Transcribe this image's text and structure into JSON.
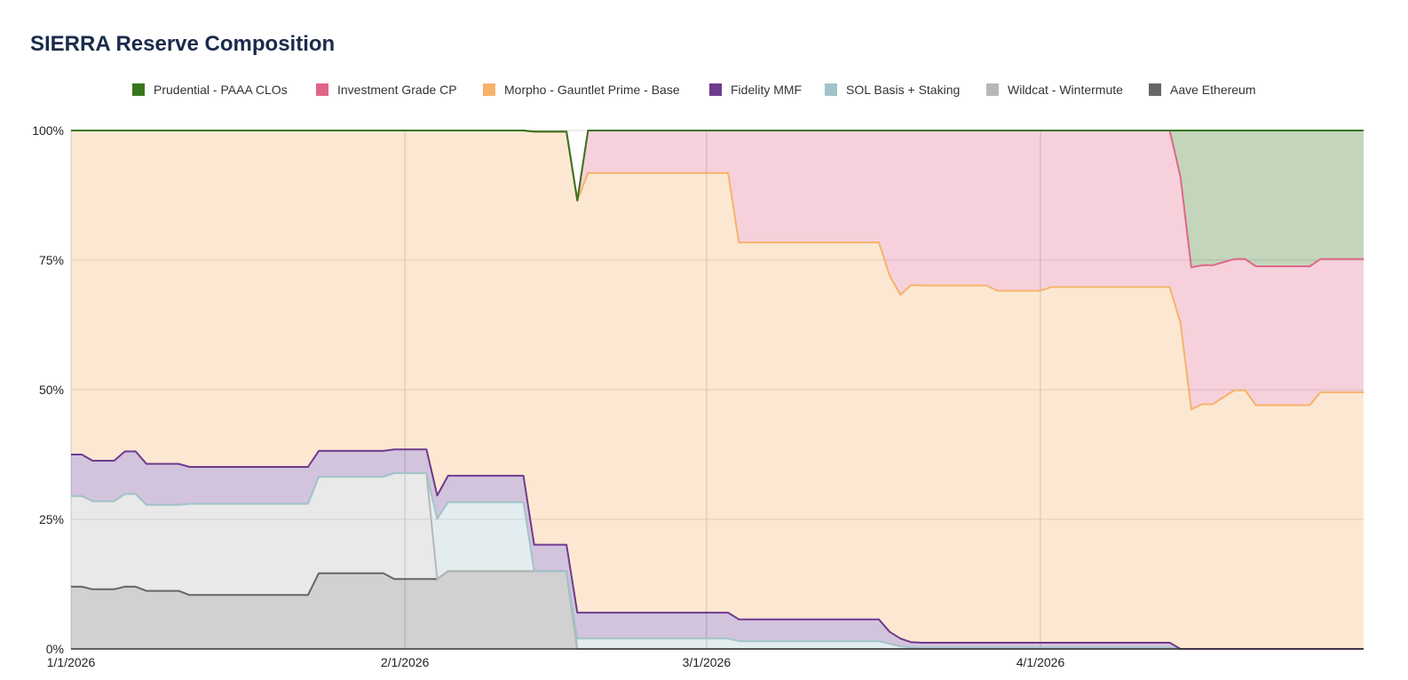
{
  "chart_data": {
    "type": "area",
    "stacked": "percent",
    "title": "SIERRA Reserve Composition",
    "xlabel": "",
    "ylabel": "",
    "ylim": [
      0,
      100
    ],
    "y_ticks": [
      "0%",
      "25%",
      "50%",
      "75%",
      "100%"
    ],
    "x_ticks": [
      "1/1/2026",
      "2/1/2026",
      "3/1/2026",
      "4/1/2026"
    ],
    "legend_position": "top",
    "grid": true,
    "x_start": "2026-01-01",
    "x_end": "2026-05-01",
    "x": [
      "2026-01-01",
      "2026-01-02",
      "2026-01-03",
      "2026-01-05",
      "2026-01-06",
      "2026-01-07",
      "2026-01-08",
      "2026-01-11",
      "2026-01-12",
      "2026-01-13",
      "2026-01-14",
      "2026-01-23",
      "2026-01-24",
      "2026-01-25",
      "2026-01-30",
      "2026-01-31",
      "2026-02-03",
      "2026-02-04",
      "2026-02-05",
      "2026-02-06",
      "2026-02-12",
      "2026-02-13",
      "2026-02-14",
      "2026-02-15",
      "2026-02-16",
      "2026-02-17",
      "2026-02-18",
      "2026-02-19",
      "2026-03-03",
      "2026-03-04",
      "2026-03-05",
      "2026-03-17",
      "2026-03-18",
      "2026-03-19",
      "2026-03-20",
      "2026-03-21",
      "2026-03-27",
      "2026-03-28",
      "2026-04-01",
      "2026-04-02",
      "2026-04-13",
      "2026-04-14",
      "2026-04-15",
      "2026-04-16",
      "2026-04-17",
      "2026-04-19",
      "2026-04-20",
      "2026-04-21",
      "2026-04-22",
      "2026-04-23",
      "2026-04-26",
      "2026-04-27",
      "2026-04-28",
      "2026-05-01"
    ],
    "series": [
      {
        "name": "Aave Ethereum",
        "color": "#666666",
        "values": [
          12,
          12,
          11.5,
          11.5,
          12,
          12,
          11.2,
          11.2,
          10.4,
          10.4,
          10.4,
          10.4,
          14.6,
          14.6,
          14.6,
          13.5,
          13.5,
          13.5,
          15,
          15,
          15,
          15,
          15,
          15,
          15,
          0,
          0,
          0,
          0,
          0,
          0,
          0,
          0,
          0,
          0,
          0,
          0,
          0,
          0,
          0,
          0,
          0,
          0,
          0,
          0,
          0,
          0,
          0,
          0,
          0,
          0,
          0,
          0,
          0
        ]
      },
      {
        "name": "Wildcat - Wintermute",
        "color": "#b7b7b7",
        "values": [
          17.5,
          17.5,
          17,
          17,
          17.9,
          17.9,
          16.6,
          16.6,
          17.6,
          17.6,
          17.6,
          17.6,
          18.6,
          18.6,
          18.6,
          20.4,
          20.4,
          0,
          0,
          0,
          0,
          0,
          0,
          0,
          0,
          0,
          0,
          0,
          0,
          0,
          0,
          0,
          0,
          0,
          0,
          0,
          0,
          0,
          0,
          0,
          0,
          0,
          0,
          0,
          0,
          0,
          0,
          0,
          0,
          0,
          0,
          0,
          0,
          0
        ]
      },
      {
        "name": "SOL Basis + Staking",
        "color": "#a2c4c9",
        "values": [
          0,
          0,
          0,
          0,
          0,
          0,
          0,
          0,
          0,
          0,
          0,
          0,
          0,
          0,
          0,
          0,
          0,
          11.6,
          13.3,
          13.3,
          13.3,
          0,
          0,
          0,
          0,
          2,
          2,
          2,
          2,
          1.5,
          1.5,
          1.5,
          1,
          0.5,
          0.3,
          0.2,
          0.2,
          0.2,
          0.2,
          0.2,
          0.2,
          0,
          0,
          0,
          0,
          0,
          0,
          0,
          0,
          0,
          0,
          0,
          0,
          0
        ]
      },
      {
        "name": "Fidelity MMF",
        "color": "#6e3a8e",
        "values": [
          8,
          8,
          7.8,
          7.8,
          8.2,
          8.2,
          7.9,
          7.9,
          7.1,
          7.1,
          7.1,
          7.1,
          5,
          5,
          5,
          4.6,
          4.6,
          4.5,
          5.1,
          5.1,
          5.1,
          5.1,
          5.1,
          5.1,
          5.1,
          5,
          5,
          5,
          5,
          4.2,
          4.2,
          4.2,
          2.3,
          1.5,
          1,
          1,
          1,
          1,
          1,
          1,
          1,
          0,
          0,
          0,
          0,
          0,
          0,
          0,
          0,
          0,
          0,
          0,
          0,
          0
        ]
      },
      {
        "name": "Morpho - Gauntlet Prime - Base",
        "color": "#f6b26b",
        "values": [
          62.5,
          62.5,
          63.7,
          63.7,
          61.9,
          61.9,
          64.3,
          64.3,
          64.9,
          64.9,
          64.9,
          64.9,
          61.8,
          61.8,
          61.8,
          61.5,
          61.5,
          70.4,
          66.6,
          66.6,
          66.6,
          79.7,
          79.7,
          79.7,
          79.7,
          79.5,
          84.8,
          84.8,
          84.8,
          72.7,
          72.7,
          72.7,
          68.7,
          66.3,
          68.9,
          68.9,
          68.9,
          67.9,
          67.9,
          68.6,
          68.6,
          62.9,
          46.2,
          47.2,
          47.2,
          49.9,
          49.9,
          47,
          47,
          47,
          47,
          49.5,
          49.5,
          49.5
        ]
      },
      {
        "name": "Investment Grade CP",
        "color": "#e06688",
        "values": [
          0,
          0,
          0,
          0,
          0,
          0,
          0,
          0,
          0,
          0,
          0,
          0,
          0,
          0,
          0,
          0,
          0,
          0,
          0,
          0,
          0,
          0,
          0,
          0,
          0,
          0,
          8.2,
          8.2,
          8.2,
          21.6,
          21.6,
          21.6,
          28,
          31.7,
          29.8,
          29.9,
          29.9,
          30.9,
          30.9,
          30.2,
          30.2,
          28.2,
          27.4,
          26.8,
          26.8,
          25.3,
          25.3,
          26.8,
          26.8,
          26.8,
          26.8,
          25.7,
          25.7,
          25.7
        ]
      },
      {
        "name": "Prudential - PAAA CLOs",
        "color": "#38761d",
        "values": [
          0,
          0,
          0,
          0,
          0,
          0,
          0,
          0,
          0,
          0,
          0,
          0,
          0,
          0,
          0,
          0,
          0,
          0,
          0,
          0,
          0,
          0,
          0,
          0,
          0,
          0,
          0,
          0,
          0,
          0,
          0,
          0,
          0,
          0,
          0,
          0,
          0,
          0,
          0,
          0,
          0,
          8.9,
          26.4,
          26,
          26,
          24.8,
          24.8,
          26.2,
          26.2,
          26.2,
          26.2,
          24.8,
          24.8,
          24.8
        ]
      }
    ]
  }
}
